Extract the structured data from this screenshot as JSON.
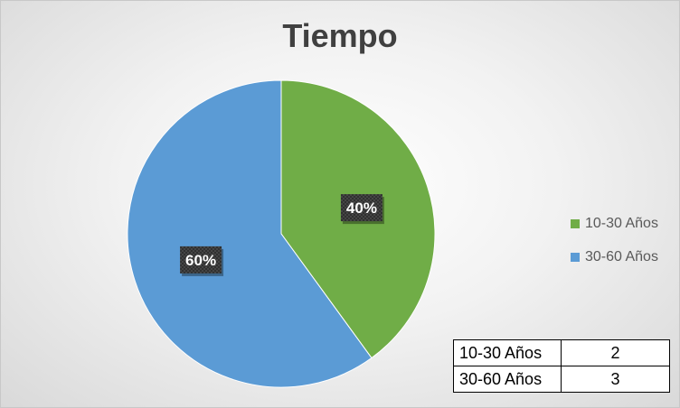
{
  "chart_data": {
    "type": "pie",
    "title": "Tiempo",
    "categories": [
      "10-30 Años",
      "30-60 Años"
    ],
    "values": [
      2,
      3
    ],
    "percent_labels": [
      "40%",
      "60%"
    ],
    "colors": [
      "#70ad47",
      "#5b9bd5"
    ],
    "legend_position": "right"
  },
  "table": {
    "rows": [
      {
        "label": "10-30 Años",
        "value": "2"
      },
      {
        "label": "30-60 Años",
        "value": "3"
      }
    ]
  }
}
